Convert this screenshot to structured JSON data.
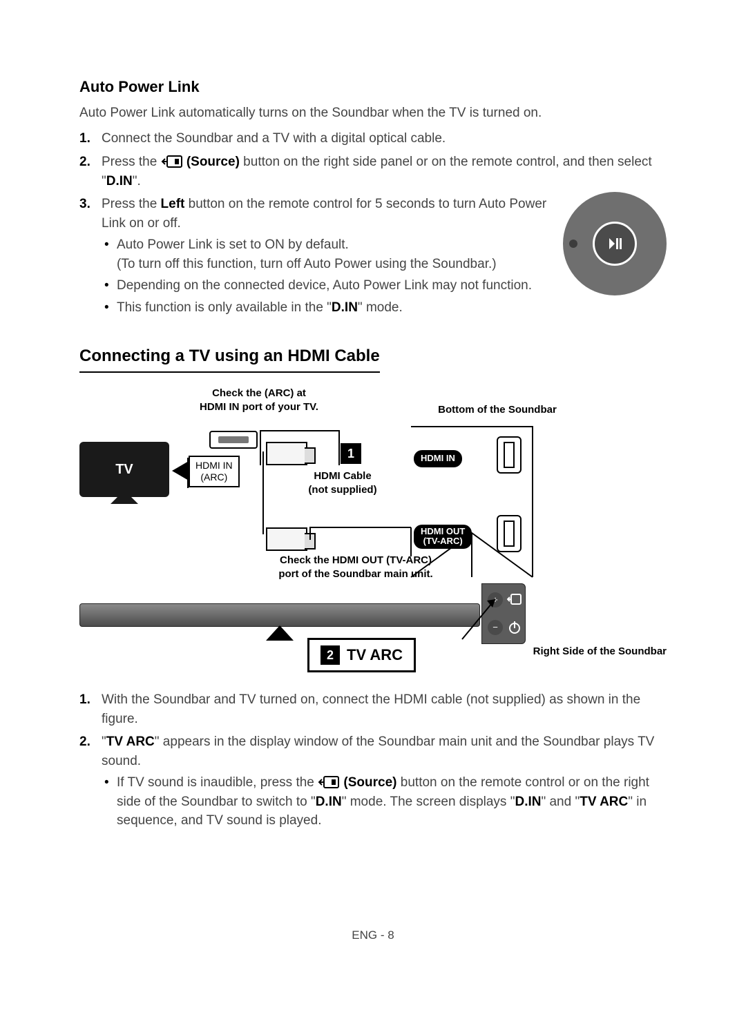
{
  "autoPower": {
    "heading": "Auto Power Link",
    "intro": "Auto Power Link automatically turns on the Soundbar when the TV is turned on.",
    "step1": "Connect the Soundbar and a TV with a digital optical cable.",
    "step2a": "Press the ",
    "step2b": " (Source)",
    "step2c": " button on the right side panel or on the remote control, and then select \"",
    "step2d": "D.IN",
    "step2e": "\".",
    "step3a": "Press the ",
    "step3b": "Left",
    "step3c": " button on the remote control for 5 seconds to turn Auto Power Link on or off.",
    "b1a": "Auto Power Link is set to ON by default.",
    "b1b": "(To turn off this function, turn off Auto Power using the Soundbar.)",
    "b2": "Depending on the connected device, Auto Power Link may not function.",
    "b3a": "This function is only available in the \"",
    "b3b": "D.IN",
    "b3c": "\" mode."
  },
  "hdmi": {
    "heading": "Connecting a TV using an HDMI Cable",
    "captionArc": "Check the (ARC) at\nHDMI IN port of your TV.",
    "captionBottom": "Bottom of the Soundbar",
    "captionRight": "Right Side of the Soundbar",
    "captionOut": "Check the HDMI OUT (TV-ARC)\nport of the Soundbar main unit.",
    "hdmiInArc": "HDMI IN\n(ARC)",
    "cableLabel": "HDMI Cable\n(not supplied)",
    "hdmiIn": "HDMI IN",
    "hdmiOut": "HDMI OUT\n(TV-ARC)",
    "tv": "TV",
    "tvarc": "TV ARC",
    "step1": "With the Soundbar and TV turned on, connect the HDMI cable (not supplied) as shown in the figure.",
    "step2a": "\"",
    "step2b": "TV ARC",
    "step2c": "\" appears in the display window of the Soundbar main unit and the Soundbar plays TV sound.",
    "s1a": "If TV sound is inaudible, press the ",
    "s1b": " (Source)",
    "s1c": " button on the remote control or on the right side of the Soundbar to switch to \"",
    "s1d": "D.IN",
    "s1e": "\" mode. The screen displays \"",
    "s1f": "D.IN",
    "s1g": "\" and \"",
    "s1h": "TV ARC",
    "s1i": "\" in sequence, and TV sound is played."
  },
  "pageNo": "ENG - 8",
  "colors": {
    "jogOuter": "#6f6f6f",
    "jogInner": "#4b4b4b",
    "text": "#444444"
  }
}
